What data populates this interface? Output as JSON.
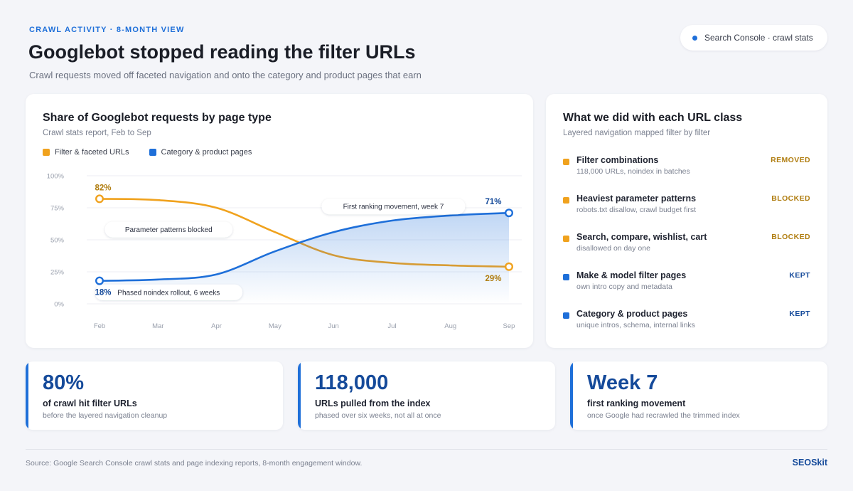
{
  "header": {
    "eyebrow": "CRAWL ACTIVITY · 8-MONTH VIEW",
    "title": "Googlebot stopped reading the filter URLs",
    "subtitle": "Crawl requests moved off faceted navigation and onto the category and product pages that earn",
    "source_pill": "Search Console · crawl stats"
  },
  "colors": {
    "orange": "#f0a21e",
    "blue": "#1e6fd9",
    "orange_text": "#b07d10",
    "blue_text": "#154a9a"
  },
  "chart_card": {
    "title": "Share of Googlebot requests by page type",
    "subtitle": "Crawl stats report, Feb to Sep"
  },
  "chart_data": {
    "type": "line",
    "x": [
      "Feb",
      "Mar",
      "Apr",
      "May",
      "Jun",
      "Jul",
      "Aug",
      "Sep"
    ],
    "ylim": [
      0,
      100
    ],
    "yticks": [
      "0%",
      "25%",
      "50%",
      "75%",
      "100%"
    ],
    "ytick_values": [
      0,
      25,
      50,
      75,
      100
    ],
    "legend_position": "top-left",
    "grid": true,
    "series": [
      {
        "name": "Filter & faceted URLs",
        "color": "#f0a21e",
        "values": [
          82,
          81,
          75,
          56,
          38,
          32,
          30,
          29
        ],
        "start_label": "82%",
        "end_label": "29%"
      },
      {
        "name": "Category & product pages",
        "color": "#1e6fd9",
        "values": [
          18,
          19,
          23,
          41,
          56,
          65,
          69,
          71
        ],
        "start_label": "18%",
        "end_label": "71%",
        "area": true
      }
    ],
    "annotations": [
      {
        "text": "Parameter patterns blocked",
        "x": "Mar",
        "y": 58
      },
      {
        "text": "Phased noindex rollout, 6 weeks",
        "x": "Mar",
        "y": 9
      },
      {
        "text": "First ranking movement, week 7",
        "x": "Jul",
        "y": 76
      }
    ]
  },
  "list_card": {
    "title": "What we did with each URL class",
    "subtitle": "Layered navigation mapped filter by filter",
    "rows": [
      {
        "name": "Filter combinations",
        "desc": "118,000 URLs, noindex in batches",
        "status": "REMOVED",
        "color": "#f0a21e",
        "status_color": "#b07d10"
      },
      {
        "name": "Heaviest parameter patterns",
        "desc": "robots.txt disallow, crawl budget first",
        "status": "BLOCKED",
        "color": "#f0a21e",
        "status_color": "#b07d10"
      },
      {
        "name": "Search, compare, wishlist, cart",
        "desc": "disallowed on day one",
        "status": "BLOCKED",
        "color": "#f0a21e",
        "status_color": "#b07d10"
      },
      {
        "name": "Make & model filter pages",
        "desc": "own intro copy and metadata",
        "status": "KEPT",
        "color": "#1e6fd9",
        "status_color": "#154a9a"
      },
      {
        "name": "Category & product pages",
        "desc": "unique intros, schema, internal links",
        "status": "KEPT",
        "color": "#1e6fd9",
        "status_color": "#154a9a"
      }
    ]
  },
  "stats": [
    {
      "value": "80%",
      "label": "of crawl hit filter URLs",
      "note": "before the layered navigation cleanup"
    },
    {
      "value": "118,000",
      "label": "URLs pulled from the index",
      "note": "phased over six weeks, not all at once"
    },
    {
      "value": "Week 7",
      "label": "first ranking movement",
      "note": "once Google had recrawled the trimmed index"
    }
  ],
  "footer": {
    "source": "Source: Google Search Console crawl stats and page indexing reports, 8-month engagement window.",
    "brand": "SEOSkit"
  }
}
